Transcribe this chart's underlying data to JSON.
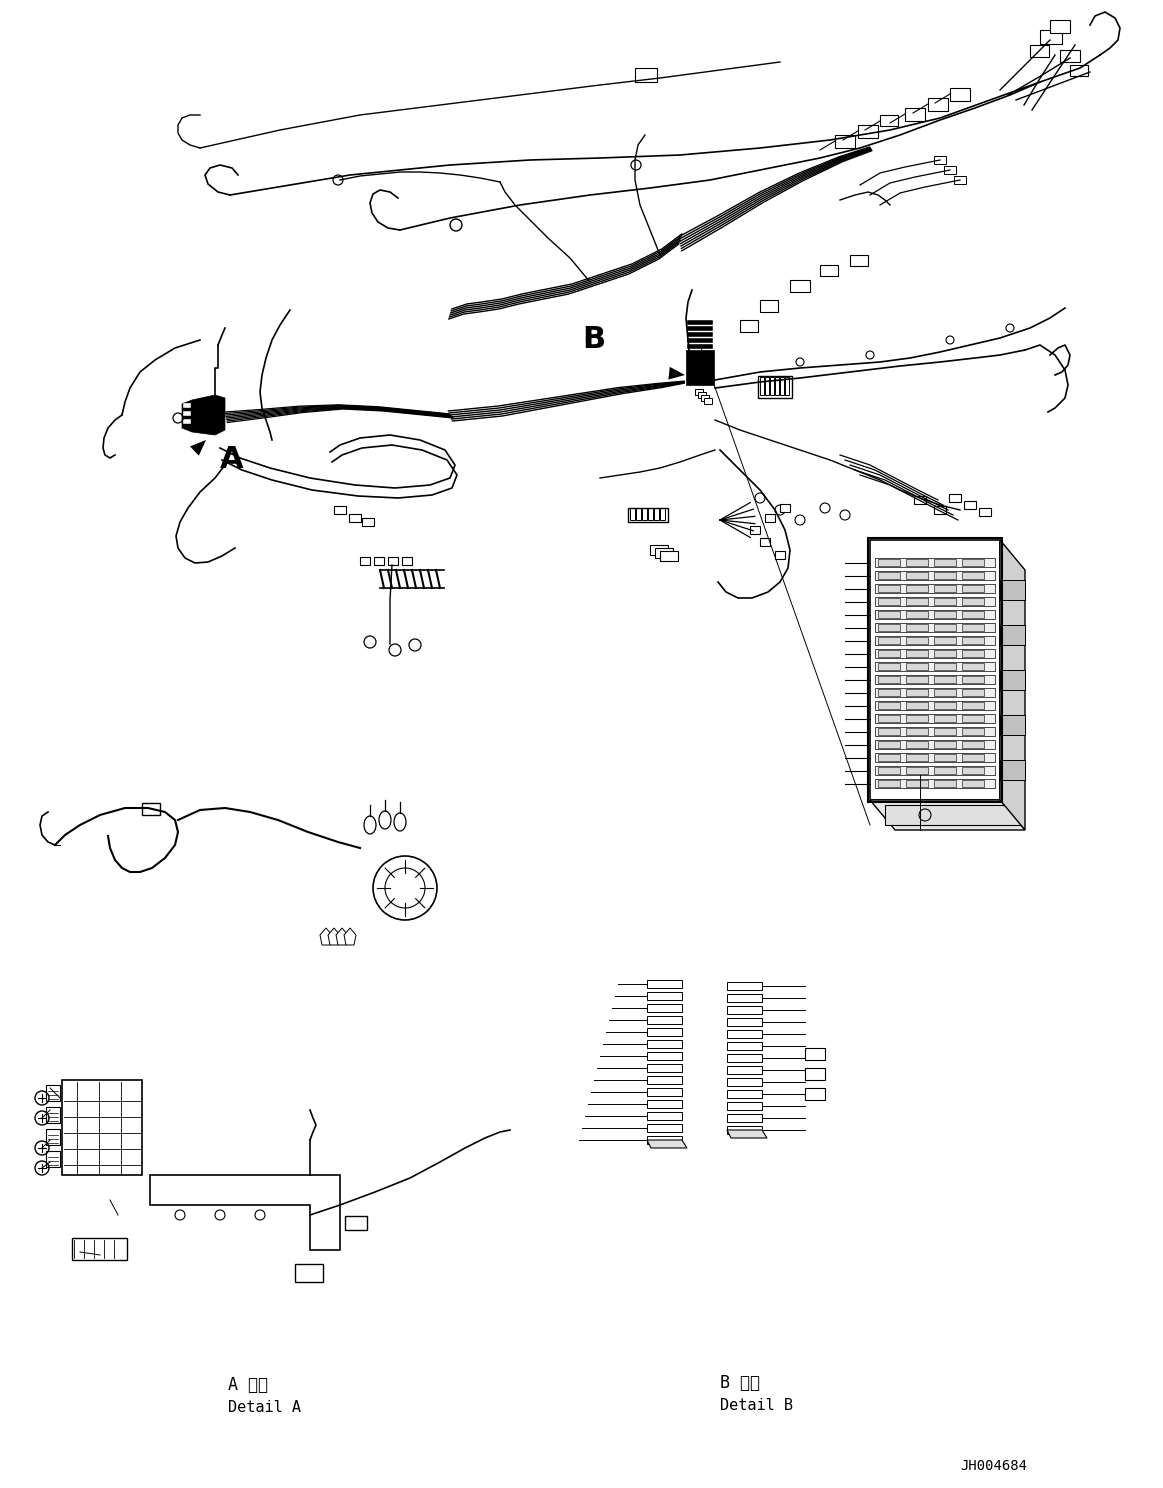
{
  "background_color": "#ffffff",
  "line_color": "#000000",
  "figure_width": 11.63,
  "figure_height": 14.88,
  "dpi": 100,
  "label_A": "A",
  "label_B": "B",
  "text_detail_A_jp": "A 詳細",
  "text_detail_A_en": "Detail A",
  "text_detail_B_jp": "B 詳細",
  "text_detail_B_en": "Detail B",
  "part_number": "JH004684"
}
